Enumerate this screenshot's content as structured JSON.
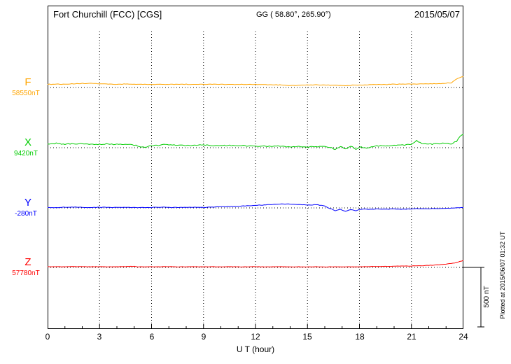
{
  "header": {
    "station": "Fort Churchill (FCC)  [CGS]",
    "coordinates": "GG ( 58.80°, 265.90°)",
    "date": "2015/05/07"
  },
  "axis": {
    "x_ticks": [
      "0",
      "3",
      "6",
      "9",
      "12",
      "15",
      "18",
      "21",
      "24"
    ],
    "x_label": "U T (hour)"
  },
  "scale_bar": {
    "label": "500 nT",
    "nT": 500
  },
  "plot_note": "Plotted at 2015/06/07 01:32 UT",
  "chart_data": {
    "type": "line",
    "title": "Fort Churchill (FCC) magnetogram",
    "x_unit": "UT hour",
    "x_range": [
      0,
      24
    ],
    "x_ticks": [
      0,
      3,
      6,
      9,
      12,
      15,
      18,
      21,
      24
    ],
    "grid": "dotted vertical at 3h intervals, dotted horizontal at each baseline",
    "scale_bar_nT": 500,
    "series": [
      {
        "name": "F",
        "baseline_label": "58550nT",
        "baseline_nT": 58550,
        "color": "#FFA500",
        "noise_nT": 3,
        "points": [
          [
            0,
            26
          ],
          [
            0.5,
            29
          ],
          [
            1,
            26
          ],
          [
            1.5,
            31
          ],
          [
            2,
            33
          ],
          [
            2.5,
            36
          ],
          [
            3,
            31
          ],
          [
            3.5,
            28
          ],
          [
            4,
            27
          ],
          [
            4.5,
            29
          ],
          [
            5,
            26
          ],
          [
            5.5,
            28
          ],
          [
            6,
            25
          ],
          [
            6.5,
            27
          ],
          [
            7,
            26
          ],
          [
            7.5,
            28
          ],
          [
            8,
            27
          ],
          [
            8.5,
            26
          ],
          [
            9,
            27
          ],
          [
            9.5,
            28
          ],
          [
            10,
            26
          ],
          [
            10.5,
            27
          ],
          [
            11,
            25
          ],
          [
            11.5,
            26
          ],
          [
            12,
            24
          ],
          [
            12.5,
            25
          ],
          [
            13,
            23
          ],
          [
            13.5,
            21
          ],
          [
            14,
            16
          ],
          [
            14.5,
            19
          ],
          [
            15,
            21
          ],
          [
            15.5,
            23
          ],
          [
            16,
            21
          ],
          [
            16.5,
            19
          ],
          [
            17,
            16
          ],
          [
            17.5,
            19
          ],
          [
            18,
            21
          ],
          [
            18.5,
            23
          ],
          [
            19,
            25
          ],
          [
            19.5,
            26
          ],
          [
            20,
            27
          ],
          [
            20.5,
            29
          ],
          [
            21,
            28
          ],
          [
            21.5,
            30
          ],
          [
            22,
            31
          ],
          [
            22.5,
            33
          ],
          [
            23,
            36
          ],
          [
            23.3,
            40
          ],
          [
            23.6,
            70
          ],
          [
            23.8,
            85
          ],
          [
            24,
            92
          ]
        ]
      },
      {
        "name": "X",
        "baseline_label": "9420nT",
        "baseline_nT": 9420,
        "color": "#00CC00",
        "noise_nT": 6,
        "points": [
          [
            0,
            32
          ],
          [
            0.5,
            37
          ],
          [
            1,
            30
          ],
          [
            1.5,
            34
          ],
          [
            2,
            31
          ],
          [
            2.5,
            27
          ],
          [
            3,
            29
          ],
          [
            3.5,
            31
          ],
          [
            4,
            26
          ],
          [
            4.5,
            29
          ],
          [
            5,
            22
          ],
          [
            5.3,
            12
          ],
          [
            5.6,
            4
          ],
          [
            6,
            16
          ],
          [
            6.5,
            23
          ],
          [
            7,
            26
          ],
          [
            7.5,
            21
          ],
          [
            8,
            19
          ],
          [
            8.5,
            21
          ],
          [
            9,
            23
          ],
          [
            9.5,
            19
          ],
          [
            10,
            16
          ],
          [
            10.5,
            19
          ],
          [
            11,
            17
          ],
          [
            11.5,
            15
          ],
          [
            12,
            13
          ],
          [
            12.5,
            16
          ],
          [
            13,
            11
          ],
          [
            13.5,
            13
          ],
          [
            14,
            9
          ],
          [
            14.5,
            11
          ],
          [
            15,
            6
          ],
          [
            15.5,
            9
          ],
          [
            16,
            11
          ],
          [
            16.3,
            2
          ],
          [
            16.6,
            -14
          ],
          [
            16.9,
            8
          ],
          [
            17.2,
            -10
          ],
          [
            17.5,
            12
          ],
          [
            17.8,
            -12
          ],
          [
            18.1,
            4
          ],
          [
            18.4,
            -6
          ],
          [
            18.7,
            8
          ],
          [
            19,
            14
          ],
          [
            19.5,
            17
          ],
          [
            20,
            19
          ],
          [
            20.5,
            24
          ],
          [
            21,
            28
          ],
          [
            21.3,
            60
          ],
          [
            21.6,
            34
          ],
          [
            22,
            30
          ],
          [
            22.5,
            34
          ],
          [
            23,
            38
          ],
          [
            23.3,
            30
          ],
          [
            23.6,
            55
          ],
          [
            23.8,
            95
          ],
          [
            24,
            112
          ]
        ]
      },
      {
        "name": "Y",
        "baseline_label": "-280nT",
        "baseline_nT": -280,
        "color": "#0000FF",
        "noise_nT": 3,
        "points": [
          [
            0,
            4
          ],
          [
            0.5,
            3
          ],
          [
            1,
            5
          ],
          [
            1.5,
            6
          ],
          [
            2,
            5
          ],
          [
            2.5,
            3
          ],
          [
            3,
            4
          ],
          [
            3.5,
            5
          ],
          [
            4,
            3
          ],
          [
            4.5,
            5
          ],
          [
            5,
            4
          ],
          [
            5.5,
            3
          ],
          [
            6,
            4
          ],
          [
            6.5,
            5
          ],
          [
            7,
            4
          ],
          [
            7.5,
            3
          ],
          [
            8,
            5
          ],
          [
            8.5,
            4
          ],
          [
            9,
            5
          ],
          [
            9.5,
            7
          ],
          [
            10,
            9
          ],
          [
            10.5,
            11
          ],
          [
            11,
            14
          ],
          [
            11.5,
            17
          ],
          [
            12,
            21
          ],
          [
            12.5,
            25
          ],
          [
            13,
            29
          ],
          [
            13.5,
            33
          ],
          [
            14,
            31
          ],
          [
            14.5,
            29
          ],
          [
            15,
            24
          ],
          [
            15.5,
            27
          ],
          [
            16,
            16
          ],
          [
            16.3,
            -5
          ],
          [
            16.6,
            -24
          ],
          [
            16.9,
            -12
          ],
          [
            17.2,
            -28
          ],
          [
            17.5,
            -14
          ],
          [
            17.8,
            -24
          ],
          [
            18.1,
            -10
          ],
          [
            18.5,
            -12
          ],
          [
            19,
            -9
          ],
          [
            19.5,
            -11
          ],
          [
            20,
            -9
          ],
          [
            20.5,
            -11
          ],
          [
            21,
            -8
          ],
          [
            21.5,
            -7
          ],
          [
            22,
            -8
          ],
          [
            22.5,
            -6
          ],
          [
            23,
            -4
          ],
          [
            23.5,
            -1
          ],
          [
            24,
            4
          ]
        ]
      },
      {
        "name": "Z",
        "baseline_label": "57780nT",
        "baseline_nT": 57780,
        "color": "#FF0000",
        "noise_nT": 2,
        "points": [
          [
            0,
            5
          ],
          [
            0.5,
            6
          ],
          [
            1,
            5
          ],
          [
            1.5,
            7
          ],
          [
            2,
            6
          ],
          [
            2.5,
            5
          ],
          [
            3,
            6
          ],
          [
            3.5,
            5
          ],
          [
            4,
            6
          ],
          [
            4.5,
            7
          ],
          [
            5,
            11
          ],
          [
            5.2,
            5
          ],
          [
            5.5,
            6
          ],
          [
            6,
            6
          ],
          [
            6.5,
            5
          ],
          [
            7,
            6
          ],
          [
            7.5,
            5
          ],
          [
            8,
            6
          ],
          [
            8.5,
            5
          ],
          [
            9,
            5
          ],
          [
            9.5,
            6
          ],
          [
            10,
            5
          ],
          [
            10.5,
            6
          ],
          [
            11,
            5
          ],
          [
            11.5,
            5
          ],
          [
            12,
            6
          ],
          [
            12.5,
            5
          ],
          [
            13,
            5
          ],
          [
            13.5,
            6
          ],
          [
            14,
            4
          ],
          [
            14.5,
            5
          ],
          [
            15,
            4
          ],
          [
            15.5,
            5
          ],
          [
            16,
            4
          ],
          [
            16.5,
            5
          ],
          [
            17,
            4
          ],
          [
            17.5,
            5
          ],
          [
            18,
            6
          ],
          [
            18.5,
            7
          ],
          [
            19,
            8
          ],
          [
            19.5,
            9
          ],
          [
            20,
            10
          ],
          [
            20.5,
            11
          ],
          [
            21,
            12
          ],
          [
            21.5,
            14
          ],
          [
            22,
            17
          ],
          [
            22.5,
            21
          ],
          [
            23,
            27
          ],
          [
            23.5,
            38
          ],
          [
            24,
            58
          ]
        ]
      }
    ]
  }
}
